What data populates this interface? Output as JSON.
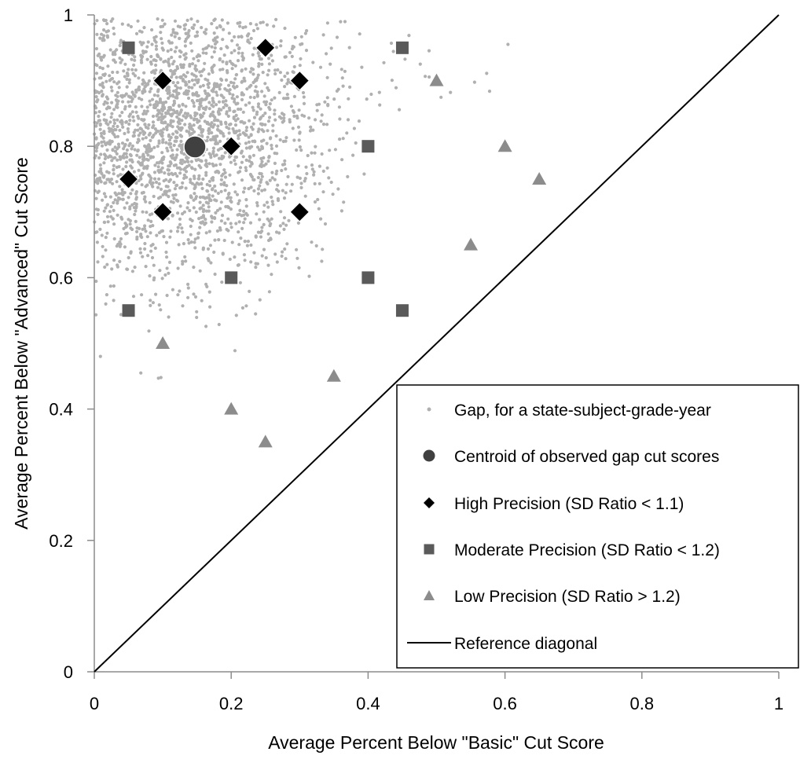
{
  "chart_data": {
    "type": "scatter",
    "xlabel": "Average Percent Below \"Basic\" Cut Score",
    "ylabel": "Average Percent Below \"Advanced\" Cut Score",
    "xlim": [
      0,
      1
    ],
    "ylim": [
      0,
      1
    ],
    "x_ticks": [
      0,
      0.2,
      0.4,
      0.6,
      0.8,
      1
    ],
    "x_tick_labels": [
      "0",
      "0.2",
      "0.4",
      "0.6",
      "0.8",
      "1"
    ],
    "y_ticks": [
      0,
      0.2,
      0.4,
      0.6,
      0.8,
      1
    ],
    "y_tick_labels": [
      "0",
      "0.2",
      "0.4",
      "0.6",
      "0.8",
      "1"
    ],
    "grid": false,
    "legend_position": "bottom-right",
    "colors": {
      "gap": "#b0b0b0",
      "centroid": "#404040",
      "high": "#000000",
      "moderate": "#5a5a5a",
      "low": "#8c8c8c",
      "diagonal": "#000000"
    },
    "gap_cloud": {
      "name": "Gap, for a state-subject-grade-year",
      "description_of_shape": "dense cloud concentrated near x 0.0-0.35, y 0.45-1.0",
      "center": [
        0.15,
        0.8
      ]
    },
    "series": [
      {
        "name": "Centroid of observed gap cut scores",
        "marker": "circle",
        "points": [
          [
            0.147,
            0.799
          ]
        ]
      },
      {
        "name": "High Precision (SD Ratio < 1.1)",
        "marker": "diamond",
        "points": [
          [
            0.1,
            0.9
          ],
          [
            0.25,
            0.95
          ],
          [
            0.3,
            0.9
          ],
          [
            0.2,
            0.8
          ],
          [
            0.05,
            0.75
          ],
          [
            0.1,
            0.7
          ],
          [
            0.3,
            0.7
          ]
        ]
      },
      {
        "name": "Moderate Precision (SD Ratio < 1.2)",
        "marker": "square",
        "points": [
          [
            0.05,
            0.95
          ],
          [
            0.45,
            0.95
          ],
          [
            0.4,
            0.8
          ],
          [
            0.2,
            0.6
          ],
          [
            0.4,
            0.6
          ],
          [
            0.05,
            0.55
          ],
          [
            0.45,
            0.55
          ]
        ]
      },
      {
        "name": "Low Precision (SD Ratio > 1.2)",
        "marker": "triangle",
        "points": [
          [
            0.5,
            0.9
          ],
          [
            0.6,
            0.8
          ],
          [
            0.65,
            0.75
          ],
          [
            0.55,
            0.65
          ],
          [
            0.1,
            0.5
          ],
          [
            0.35,
            0.45
          ],
          [
            0.2,
            0.4
          ],
          [
            0.25,
            0.35
          ]
        ]
      },
      {
        "name": "Reference diagonal",
        "marker": "line",
        "points": [
          [
            0,
            0
          ],
          [
            1,
            1
          ]
        ]
      }
    ]
  }
}
